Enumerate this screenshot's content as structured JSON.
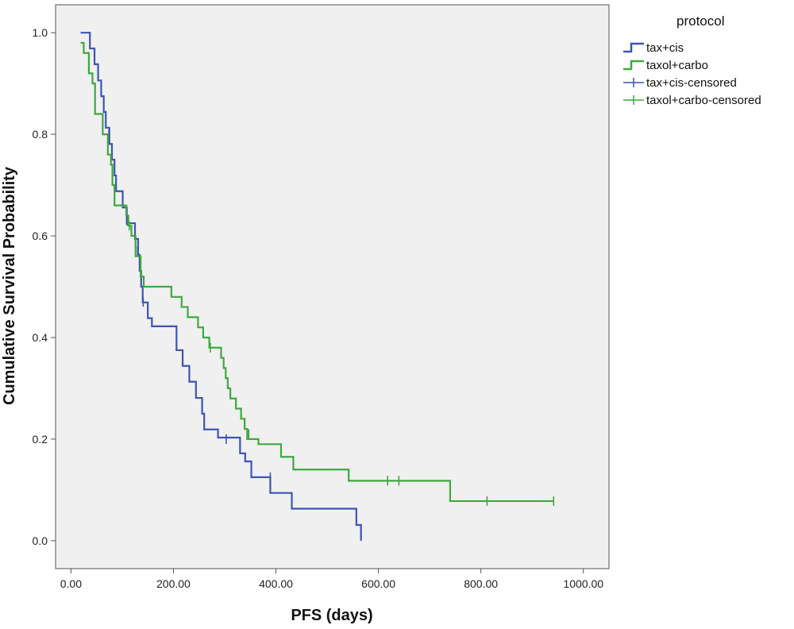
{
  "chart_data": {
    "type": "line",
    "subtype": "kaplan-meier-step",
    "xlabel": "PFS (days)",
    "ylabel": "Cumulative Survival Probability",
    "xlim": [
      -30,
      1050
    ],
    "ylim": [
      -0.055,
      1.055
    ],
    "x_ticks": [
      0,
      200,
      400,
      600,
      800,
      1000
    ],
    "x_tick_labels": [
      "0.00",
      "200.00",
      "400.00",
      "600.00",
      "800.00",
      "1000.00"
    ],
    "y_ticks": [
      0,
      0.2,
      0.4,
      0.6,
      0.8,
      1.0
    ],
    "y_tick_labels": [
      "0.0",
      "0.2",
      "0.4",
      "0.6",
      "0.8",
      "1.0"
    ],
    "grid": false,
    "plot_background": "#f0f0f0",
    "legend": {
      "title": "protocol",
      "placement": "right-top",
      "entries": [
        {
          "label": "tax+cis",
          "kind": "step",
          "color": "#3c55b4"
        },
        {
          "label": "taxol+carbo",
          "kind": "step",
          "color": "#3fa83f"
        },
        {
          "label": "tax+cis-censored",
          "kind": "censor",
          "color": "#3c55b4"
        },
        {
          "label": "taxol+carbo-censored",
          "kind": "censor",
          "color": "#3fa83f"
        }
      ]
    },
    "series": [
      {
        "name": "tax+cis",
        "color": "#3c55b4",
        "steps": [
          [
            0,
            1.0
          ],
          [
            37,
            0.969
          ],
          [
            46,
            0.938
          ],
          [
            53,
            0.906
          ],
          [
            59,
            0.875
          ],
          [
            64,
            0.844
          ],
          [
            68,
            0.813
          ],
          [
            75,
            0.781
          ],
          [
            80,
            0.75
          ],
          [
            85,
            0.719
          ],
          [
            88,
            0.688
          ],
          [
            101,
            0.656
          ],
          [
            109,
            0.625
          ],
          [
            125,
            0.594
          ],
          [
            131,
            0.563
          ],
          [
            134,
            0.531
          ],
          [
            137,
            0.5
          ],
          [
            140,
            0.469
          ],
          [
            150,
            0.438
          ],
          [
            158,
            0.422
          ],
          [
            206,
            0.375
          ],
          [
            218,
            0.344
          ],
          [
            231,
            0.313
          ],
          [
            244,
            0.281
          ],
          [
            256,
            0.25
          ],
          [
            260,
            0.219
          ],
          [
            287,
            0.203
          ],
          [
            330,
            0.172
          ],
          [
            340,
            0.156
          ],
          [
            352,
            0.125
          ],
          [
            389,
            0.094
          ],
          [
            431,
            0.063
          ],
          [
            557,
            0.031
          ],
          [
            566,
            0.0
          ]
        ],
        "start_x": 19,
        "end_x": 566,
        "censored": [
          [
            74,
            0.8
          ],
          [
            109,
            0.63
          ],
          [
            130,
            0.57
          ],
          [
            141,
            0.47
          ],
          [
            303,
            0.2
          ],
          [
            389,
            0.125
          ]
        ]
      },
      {
        "name": "taxol+carbo",
        "color": "#3fa83f",
        "steps": [
          [
            0,
            0.98
          ],
          [
            25,
            0.96
          ],
          [
            35,
            0.92
          ],
          [
            42,
            0.9
          ],
          [
            47,
            0.84
          ],
          [
            62,
            0.8
          ],
          [
            72,
            0.76
          ],
          [
            78,
            0.74
          ],
          [
            81,
            0.7
          ],
          [
            85,
            0.66
          ],
          [
            108,
            0.64
          ],
          [
            112,
            0.62
          ],
          [
            118,
            0.6
          ],
          [
            126,
            0.56
          ],
          [
            136,
            0.52
          ],
          [
            142,
            0.5
          ],
          [
            196,
            0.48
          ],
          [
            216,
            0.46
          ],
          [
            228,
            0.44
          ],
          [
            248,
            0.42
          ],
          [
            258,
            0.4
          ],
          [
            270,
            0.38
          ],
          [
            293,
            0.36
          ],
          [
            298,
            0.34
          ],
          [
            302,
            0.32
          ],
          [
            306,
            0.3
          ],
          [
            311,
            0.28
          ],
          [
            322,
            0.26
          ],
          [
            332,
            0.24
          ],
          [
            339,
            0.22
          ],
          [
            344,
            0.2
          ],
          [
            366,
            0.19
          ],
          [
            410,
            0.165
          ],
          [
            434,
            0.14
          ],
          [
            542,
            0.118
          ],
          [
            740,
            0.078
          ]
        ],
        "start_x": 19,
        "end_x": 942,
        "censored": [
          [
            114,
            0.62
          ],
          [
            272,
            0.38
          ],
          [
            347,
            0.21
          ],
          [
            618,
            0.118
          ],
          [
            640,
            0.118
          ],
          [
            812,
            0.078
          ],
          [
            942,
            0.078
          ]
        ]
      }
    ]
  }
}
